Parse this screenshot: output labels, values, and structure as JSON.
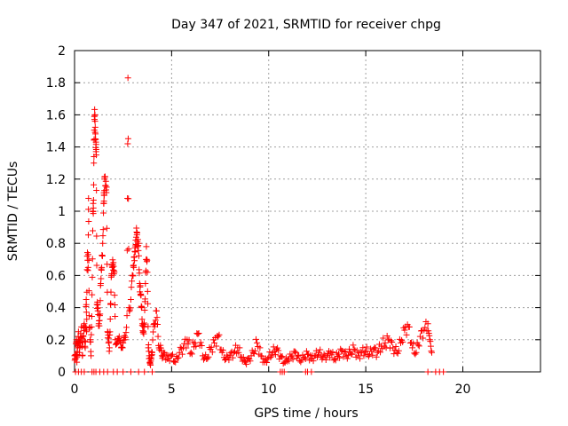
{
  "chart_data": {
    "type": "scatter",
    "title": "Day 347 of 2021, SRMTID for receiver chpg",
    "xlabel": "GPS time / hours",
    "ylabel": "SRMTID / TECUs",
    "xlim": [
      0,
      24
    ],
    "ylim": [
      0,
      2
    ],
    "xticks": [
      0,
      5,
      10,
      15,
      20
    ],
    "yticks": [
      0,
      0.2,
      0.4,
      0.6,
      0.8,
      1,
      1.2,
      1.4,
      1.6,
      1.8,
      2
    ],
    "xtick_labels": [
      "0",
      "5",
      "10",
      "15",
      "20"
    ],
    "ytick_labels": [
      "0",
      "0.2",
      "0.4",
      "0.6",
      "0.8",
      "1",
      "1.2",
      "1.4",
      "1.6",
      "1.8",
      "2"
    ],
    "grid": true,
    "marker": "+",
    "color": "#ff0000",
    "series": [
      {
        "name": "SRMTID",
        "points": [
          [
            0.0,
            0.1
          ],
          [
            0.05,
            0.08
          ],
          [
            0.1,
            0.2
          ],
          [
            0.12,
            0.06
          ],
          [
            0.15,
            0.15
          ],
          [
            0.2,
            0.25
          ],
          [
            0.25,
            0.12
          ],
          [
            0.3,
            0.18
          ],
          [
            0.35,
            0.28
          ],
          [
            0.4,
            0.1
          ],
          [
            0.45,
            0.22
          ],
          [
            0.5,
            0.3
          ],
          [
            0.55,
            0.15
          ],
          [
            0.6,
            0.45
          ],
          [
            0.62,
            0.25
          ],
          [
            0.65,
            0.72
          ],
          [
            0.7,
            0.65
          ],
          [
            0.72,
            1.08
          ],
          [
            0.75,
            0.35
          ],
          [
            0.8,
            0.2
          ],
          [
            0.85,
            0.1
          ],
          [
            0.9,
            0.48
          ],
          [
            0.95,
            1.0
          ],
          [
            0.97,
            1.02
          ],
          [
            1.0,
            1.34
          ],
          [
            1.02,
            1.59
          ],
          [
            1.05,
            1.6
          ],
          [
            1.07,
            1.45
          ],
          [
            1.1,
            1.43
          ],
          [
            1.12,
            1.35
          ],
          [
            1.15,
            0.42
          ],
          [
            1.2,
            0.38
          ],
          [
            1.25,
            0.3
          ],
          [
            1.3,
            0.35
          ],
          [
            1.35,
            0.55
          ],
          [
            1.4,
            0.65
          ],
          [
            1.45,
            0.8
          ],
          [
            1.5,
            1.05
          ],
          [
            1.52,
            1.1
          ],
          [
            1.55,
            1.2
          ],
          [
            1.6,
            1.16
          ],
          [
            1.65,
            1.15
          ],
          [
            1.7,
            0.25
          ],
          [
            1.75,
            0.18
          ],
          [
            1.8,
            0.15
          ],
          [
            1.85,
            0.42
          ],
          [
            1.9,
            0.6
          ],
          [
            1.95,
            0.65
          ],
          [
            2.0,
            0.68
          ],
          [
            2.05,
            0.62
          ],
          [
            2.1,
            0.2
          ],
          [
            2.2,
            0.18
          ],
          [
            2.3,
            0.22
          ],
          [
            2.4,
            0.15
          ],
          [
            2.5,
            0.18
          ],
          [
            2.6,
            0.2
          ],
          [
            2.7,
            0.35
          ],
          [
            2.75,
            1.83
          ],
          [
            2.8,
            0.4
          ],
          [
            2.9,
            0.45
          ],
          [
            3.0,
            0.6
          ],
          [
            3.05,
            0.65
          ],
          [
            3.1,
            0.75
          ],
          [
            3.15,
            0.82
          ],
          [
            3.2,
            0.87
          ],
          [
            3.25,
            0.78
          ],
          [
            3.3,
            0.8
          ],
          [
            3.35,
            0.55
          ],
          [
            3.4,
            0.48
          ],
          [
            3.45,
            0.4
          ],
          [
            3.5,
            0.3
          ],
          [
            3.55,
            0.25
          ],
          [
            3.6,
            0.28
          ],
          [
            3.65,
            0.55
          ],
          [
            3.7,
            0.78
          ],
          [
            3.75,
            0.62
          ],
          [
            3.8,
            0.15
          ],
          [
            3.85,
            0.1
          ],
          [
            3.9,
            0.05
          ],
          [
            3.95,
            0.08
          ],
          [
            4.0,
            0.12
          ],
          [
            4.1,
            0.3
          ],
          [
            4.2,
            0.38
          ],
          [
            4.3,
            0.22
          ],
          [
            4.4,
            0.15
          ],
          [
            4.5,
            0.1
          ],
          [
            4.6,
            0.12
          ],
          [
            4.8,
            0.08
          ],
          [
            5.0,
            0.1
          ],
          [
            5.2,
            0.06
          ],
          [
            5.4,
            0.12
          ],
          [
            5.6,
            0.15
          ],
          [
            5.8,
            0.2
          ],
          [
            6.0,
            0.12
          ],
          [
            6.2,
            0.18
          ],
          [
            6.4,
            0.24
          ],
          [
            6.6,
            0.1
          ],
          [
            6.8,
            0.08
          ],
          [
            7.0,
            0.14
          ],
          [
            7.2,
            0.18
          ],
          [
            7.4,
            0.22
          ],
          [
            7.6,
            0.12
          ],
          [
            7.8,
            0.08
          ],
          [
            8.0,
            0.1
          ],
          [
            8.2,
            0.12
          ],
          [
            8.4,
            0.15
          ],
          [
            8.6,
            0.09
          ],
          [
            8.8,
            0.06
          ],
          [
            9.0,
            0.08
          ],
          [
            9.2,
            0.12
          ],
          [
            9.4,
            0.18
          ],
          [
            9.6,
            0.1
          ],
          [
            9.8,
            0.06
          ],
          [
            10.0,
            0.09
          ],
          [
            10.2,
            0.12
          ],
          [
            10.4,
            0.14
          ],
          [
            10.6,
            0.1
          ],
          [
            10.8,
            0.06
          ],
          [
            11.0,
            0.08
          ],
          [
            11.2,
            0.1
          ],
          [
            11.4,
            0.12
          ],
          [
            11.6,
            0.07
          ],
          [
            11.8,
            0.09
          ],
          [
            12.0,
            0.11
          ],
          [
            12.2,
            0.08
          ],
          [
            12.4,
            0.1
          ],
          [
            12.6,
            0.12
          ],
          [
            12.8,
            0.09
          ],
          [
            13.0,
            0.1
          ],
          [
            13.2,
            0.12
          ],
          [
            13.4,
            0.08
          ],
          [
            13.6,
            0.11
          ],
          [
            13.8,
            0.13
          ],
          [
            14.0,
            0.1
          ],
          [
            14.2,
            0.12
          ],
          [
            14.4,
            0.14
          ],
          [
            14.6,
            0.1
          ],
          [
            14.8,
            0.12
          ],
          [
            15.0,
            0.13
          ],
          [
            15.2,
            0.11
          ],
          [
            15.4,
            0.14
          ],
          [
            15.6,
            0.12
          ],
          [
            15.8,
            0.16
          ],
          [
            16.0,
            0.18
          ],
          [
            16.2,
            0.2
          ],
          [
            16.4,
            0.15
          ],
          [
            16.6,
            0.12
          ],
          [
            16.8,
            0.18
          ],
          [
            17.0,
            0.26
          ],
          [
            17.2,
            0.28
          ],
          [
            17.4,
            0.15
          ],
          [
            17.6,
            0.12
          ],
          [
            17.8,
            0.22
          ],
          [
            18.0,
            0.26
          ],
          [
            18.2,
            0.3
          ],
          [
            18.3,
            0.2
          ],
          [
            18.4,
            0.12
          ]
        ],
        "zero_points": [
          0.05,
          0.2,
          0.35,
          0.5,
          0.9,
          1.0,
          1.1,
          1.3,
          1.5,
          1.7,
          2.0,
          2.2,
          2.5,
          2.9,
          3.3,
          3.6,
          4.0,
          10.6,
          10.7,
          10.8,
          11.9,
          12.0,
          12.2,
          18.2,
          18.6,
          18.8,
          19.0
        ]
      }
    ]
  }
}
